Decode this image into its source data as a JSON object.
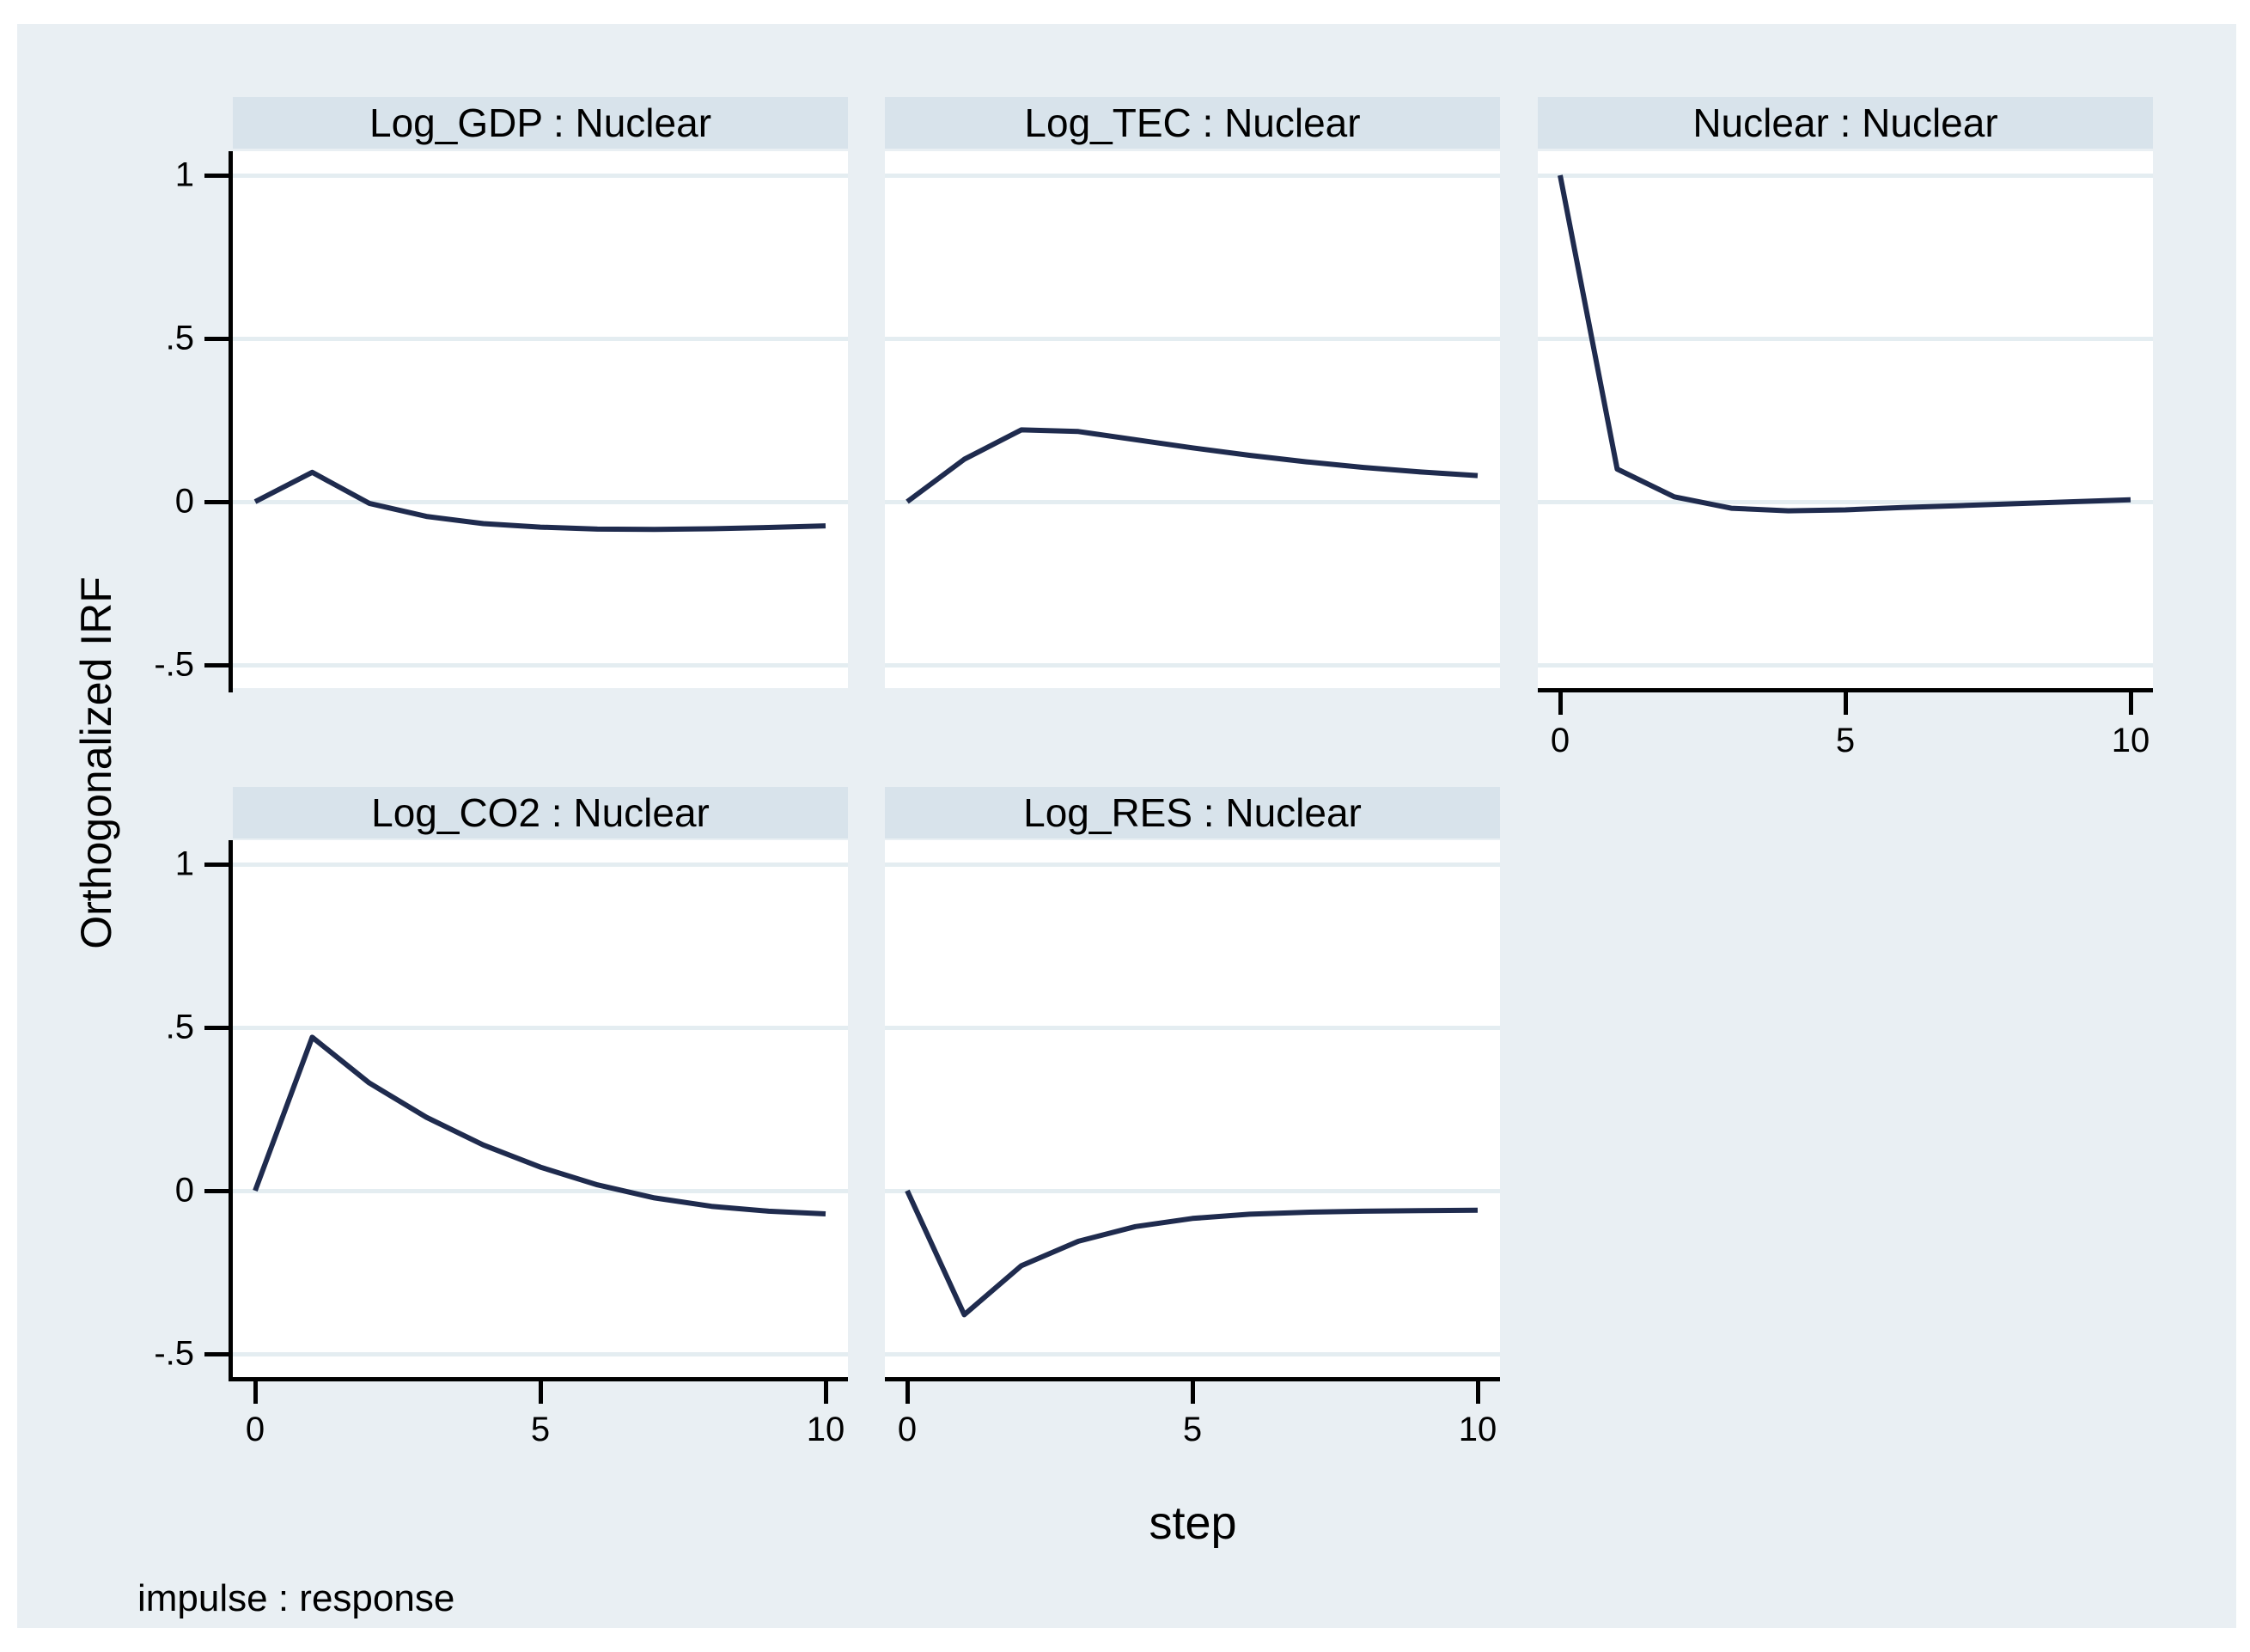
{
  "chart_data": {
    "type": "line",
    "title": "",
    "ylabel": "Orthogonalized IRF",
    "xlabel": "step",
    "note": "impulse : response",
    "x": [
      0,
      1,
      2,
      3,
      4,
      5,
      6,
      7,
      8,
      9,
      10
    ],
    "x_ticks": [
      0,
      5,
      10
    ],
    "y_ticks": [
      {
        "value": 1,
        "label": "1"
      },
      {
        "value": 0.5,
        "label": ".5"
      },
      {
        "value": 0,
        "label": "0"
      },
      {
        "value": -0.5,
        "label": "-.5"
      }
    ],
    "xlim": [
      -0.4,
      10.4
    ],
    "ylim": [
      -0.58,
      1.07
    ],
    "grid": true,
    "legend": "none",
    "panels": [
      {
        "title": "Log_GDP : Nuclear",
        "row": 0,
        "col": 0,
        "y_axis": true,
        "x_axis": false,
        "values": [
          0,
          0.09,
          -0.005,
          -0.045,
          -0.067,
          -0.078,
          -0.084,
          -0.085,
          -0.083,
          -0.079,
          -0.074
        ]
      },
      {
        "title": "Log_TEC : Nuclear",
        "row": 0,
        "col": 1,
        "y_axis": false,
        "x_axis": false,
        "values": [
          0,
          0.13,
          0.22,
          0.215,
          0.19,
          0.165,
          0.142,
          0.122,
          0.105,
          0.091,
          0.08
        ]
      },
      {
        "title": "Nuclear : Nuclear",
        "row": 0,
        "col": 2,
        "y_axis": false,
        "x_axis": true,
        "values": [
          1,
          0.1,
          0.015,
          -0.02,
          -0.028,
          -0.025,
          -0.018,
          -0.012,
          -0.006,
          0,
          0.006
        ]
      },
      {
        "title": "Log_CO2 : Nuclear",
        "row": 1,
        "col": 0,
        "y_axis": true,
        "x_axis": true,
        "values": [
          0,
          0.47,
          0.33,
          0.225,
          0.14,
          0.072,
          0.018,
          -0.022,
          -0.048,
          -0.063,
          -0.071
        ]
      },
      {
        "title": "Log_RES : Nuclear",
        "row": 1,
        "col": 1,
        "y_axis": false,
        "x_axis": true,
        "values": [
          0,
          -0.38,
          -0.23,
          -0.155,
          -0.11,
          -0.085,
          -0.072,
          -0.066,
          -0.063,
          -0.061,
          -0.06
        ]
      }
    ],
    "colors": {
      "line": "#1f2b4e",
      "canvas": "#e9eff3",
      "header_band": "#d8e3eb",
      "grid": "#e4edf1",
      "axis": "#000000",
      "plot_bg": "#ffffff",
      "page_bg": "#ffffff"
    }
  }
}
